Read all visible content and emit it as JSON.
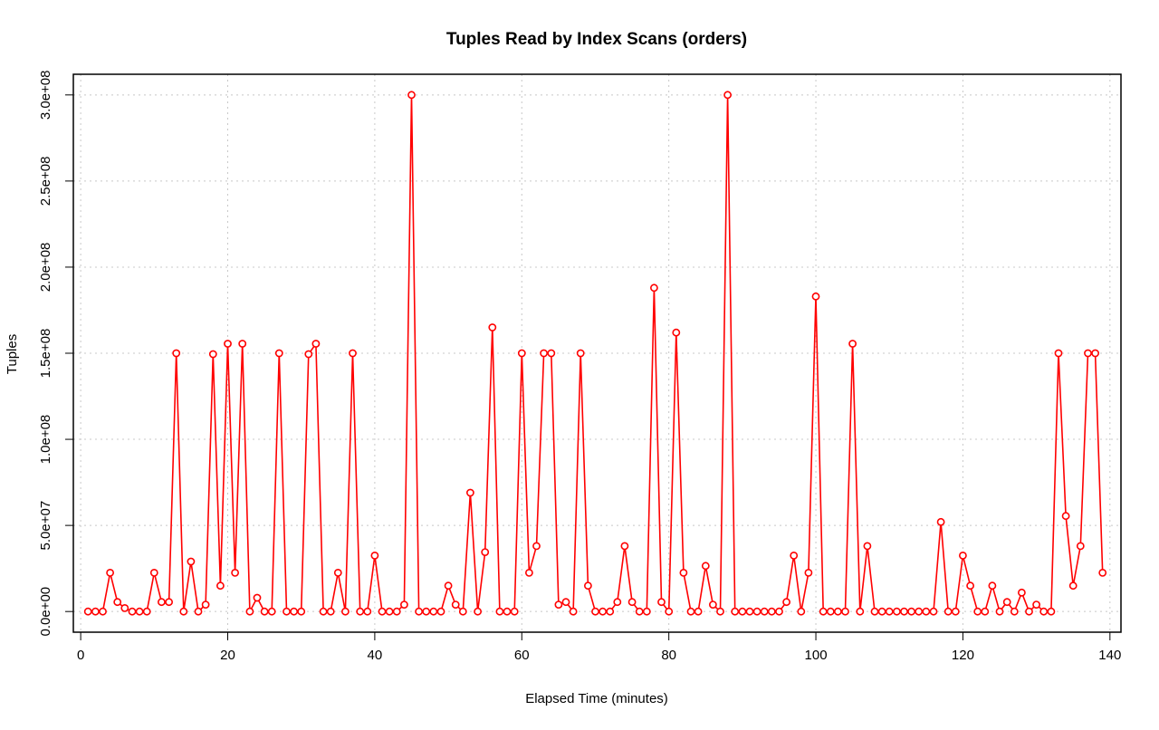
{
  "chart_data": {
    "type": "line",
    "title": "Tuples Read by Index Scans (orders)",
    "xlabel": "Elapsed Time (minutes)",
    "ylabel": "Tuples",
    "xlim": [
      -1,
      141.5
    ],
    "ylim": [
      -12000000,
      312000000
    ],
    "x_ticks": [
      0,
      20,
      40,
      60,
      80,
      100,
      120,
      140
    ],
    "x_tick_labels": [
      "0",
      "20",
      "40",
      "60",
      "80",
      "100",
      "120",
      "140"
    ],
    "y_ticks": [
      0,
      50000000,
      100000000,
      150000000,
      200000000,
      250000000,
      300000000
    ],
    "y_tick_labels": [
      "0.0e+00",
      "5.0e+07",
      "1.0e+08",
      "1.5e+08",
      "2.0e+08",
      "2.5e+08",
      "3.0e+08"
    ],
    "grid": true,
    "line_color": "#ff0000",
    "marker": "open-circle",
    "series": [
      {
        "x": [
          1,
          2,
          3,
          4,
          5,
          6,
          7,
          8,
          9,
          10,
          11,
          12,
          13,
          14,
          15,
          16,
          17,
          18,
          19,
          20,
          21,
          22,
          23,
          24,
          25,
          26,
          27,
          28,
          29,
          30,
          31,
          32,
          33,
          34,
          35,
          36,
          37,
          38,
          39,
          40,
          41,
          42,
          43,
          44,
          45,
          46,
          47,
          48,
          49,
          50,
          51,
          52,
          53,
          54,
          55,
          56,
          57,
          58,
          59,
          60,
          61,
          62,
          63,
          64,
          65,
          66,
          67,
          68,
          69,
          70,
          71,
          72,
          73,
          74,
          75,
          76,
          77,
          78,
          79,
          80,
          81,
          82,
          83,
          84,
          85,
          86,
          87,
          88,
          89,
          90,
          91,
          92,
          93,
          94,
          95,
          96,
          97,
          98,
          99,
          100,
          101,
          102,
          103,
          104,
          105,
          106,
          107,
          108,
          109,
          110,
          111,
          112,
          113,
          114,
          115,
          116,
          117,
          118,
          119,
          120,
          121,
          122,
          123,
          124,
          125,
          126,
          127,
          128,
          129,
          130,
          131,
          132,
          133,
          134,
          135,
          136,
          137,
          138,
          139
        ],
        "values": [
          0,
          0,
          0,
          22500000,
          5500000,
          2000000,
          0,
          0,
          0,
          22500000,
          5500000,
          5500000,
          150000000,
          0,
          29000000,
          0,
          4000000,
          149500000,
          15000000,
          155500000,
          22500000,
          155500000,
          0,
          8000000,
          0,
          0,
          150000000,
          0,
          0,
          0,
          149500000,
          155500000,
          0,
          0,
          22500000,
          0,
          150000000,
          0,
          0,
          32500000,
          0,
          0,
          0,
          4000000,
          300000000,
          0,
          0,
          0,
          0,
          15000000,
          4000000,
          0,
          69000000,
          0,
          34500000,
          165000000,
          0,
          0,
          0,
          150000000,
          22500000,
          38000000,
          150000000,
          150000000,
          4000000,
          5500000,
          0,
          150000000,
          15000000,
          0,
          0,
          0,
          5500000,
          38000000,
          5500000,
          0,
          0,
          188000000,
          5500000,
          0,
          162000000,
          22500000,
          0,
          0,
          26500000,
          4000000,
          0,
          300000000,
          0,
          0,
          0,
          0,
          0,
          0,
          0,
          5500000,
          32500000,
          0,
          22500000,
          183000000,
          0,
          0,
          0,
          0,
          155500000,
          0,
          38000000,
          0,
          0,
          0,
          0,
          0,
          0,
          0,
          0,
          0,
          52000000,
          0,
          0,
          32500000,
          15000000,
          0,
          0,
          15000000,
          0,
          5500000,
          0,
          11000000,
          0,
          4000000,
          0,
          0,
          150000000,
          55500000,
          15000000,
          38000000,
          150000000,
          150000000,
          22500000
        ]
      }
    ]
  }
}
